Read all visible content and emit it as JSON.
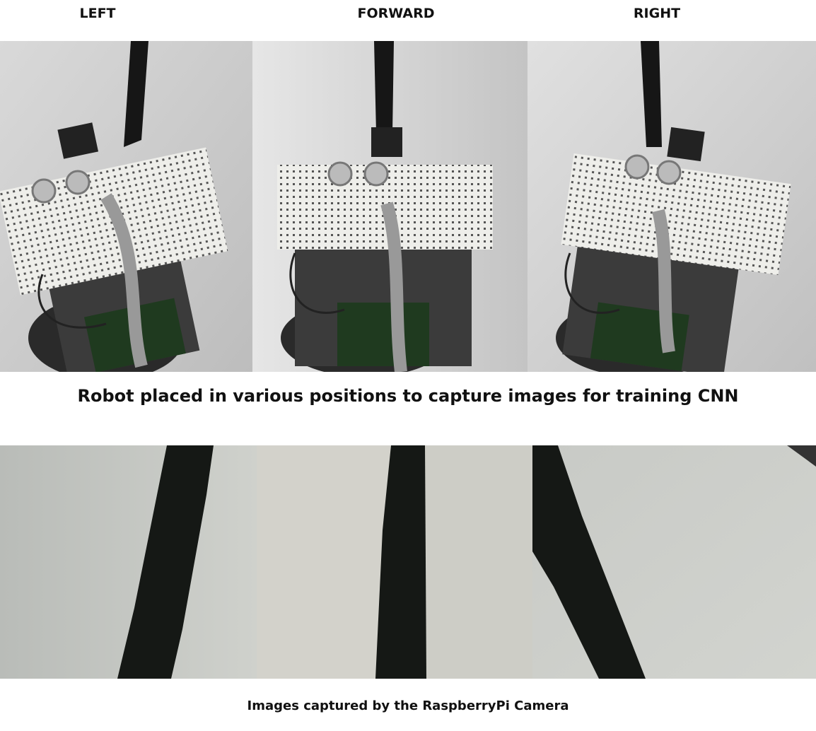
{
  "column_labels": {
    "left": "LEFT",
    "forward": "FORWARD",
    "right": "RIGHT"
  },
  "captions": {
    "robot_photos": "Robot placed in various positions to capture images for training CNN",
    "camera_photos": "Images captured by the RaspberryPi Camera"
  }
}
